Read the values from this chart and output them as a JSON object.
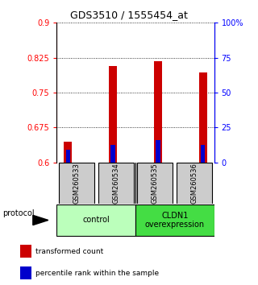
{
  "title": "GDS3510 / 1555454_at",
  "samples": [
    "GSM260533",
    "GSM260534",
    "GSM260535",
    "GSM260536"
  ],
  "red_tops": [
    0.645,
    0.808,
    0.818,
    0.793
  ],
  "blue_tops": [
    0.628,
    0.638,
    0.648,
    0.638
  ],
  "bar_base": 0.6,
  "ylim": [
    0.6,
    0.9
  ],
  "yticks_left": [
    0.6,
    0.675,
    0.75,
    0.825,
    0.9
  ],
  "yticks_right": [
    0,
    25,
    50,
    75,
    100
  ],
  "yticks_right_labels": [
    "0",
    "25",
    "50",
    "75",
    "100%"
  ],
  "red_bar_width": 0.18,
  "blue_bar_width": 0.1,
  "red_color": "#CC0000",
  "blue_color": "#0000CC",
  "groups": [
    {
      "label": "control",
      "color": "#bbffbb"
    },
    {
      "label": "CLDN1\noverexpression",
      "color": "#44dd44"
    }
  ],
  "protocol_label": "protocol",
  "legend_red": "transformed count",
  "legend_blue": "percentile rank within the sample",
  "sample_box_color": "#cccccc"
}
